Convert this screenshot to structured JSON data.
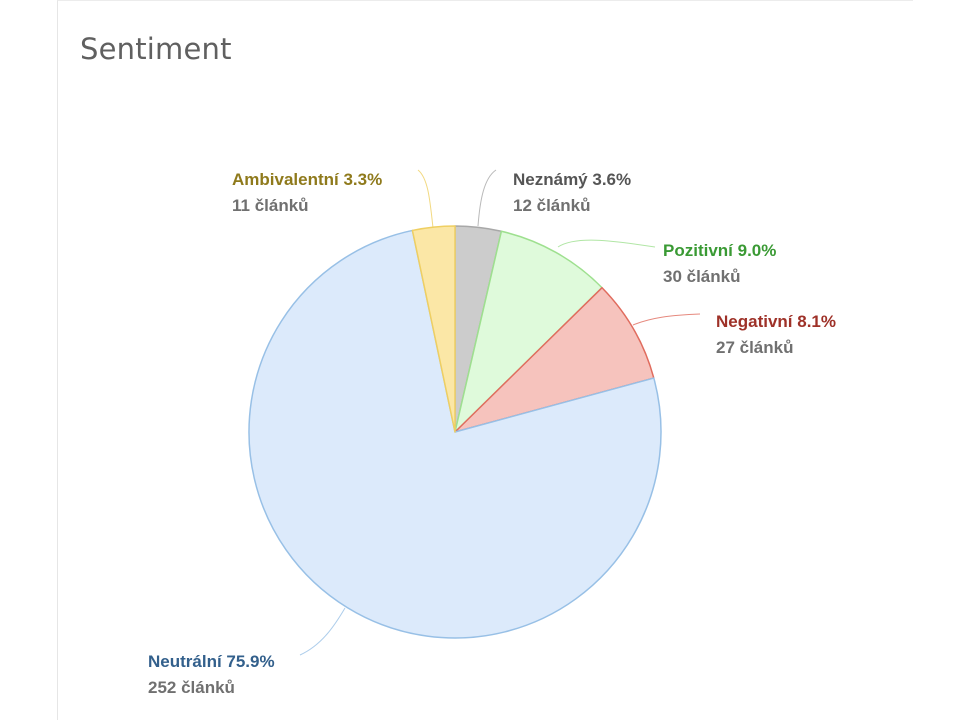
{
  "card": {
    "title": "Sentiment"
  },
  "chart_data": {
    "type": "pie",
    "start_angle_deg": 0,
    "direction": "clockwise",
    "slices": [
      {
        "name": "Neznámý",
        "percent_label": "3.6%",
        "count_label": "12 článků",
        "value": 12,
        "fill": "#cccccc",
        "stroke": "#a8a8a8",
        "label_color": "#555555"
      },
      {
        "name": "Pozitivní",
        "percent_label": "9.0%",
        "count_label": "30 článků",
        "value": 30,
        "fill": "#dffadb",
        "stroke": "#9ee08f",
        "label_color": "#3a9a34"
      },
      {
        "name": "Negativní",
        "percent_label": "8.1%",
        "count_label": "27 článků",
        "value": 27,
        "fill": "#f6c3bd",
        "stroke": "#e06c5e",
        "label_color": "#9e3128"
      },
      {
        "name": "Neutrální",
        "percent_label": "75.9%",
        "count_label": "252 článků",
        "value": 252,
        "fill": "#dceafb",
        "stroke": "#98c0e6",
        "label_color": "#33608c"
      },
      {
        "name": "Ambivalentní",
        "percent_label": "3.3%",
        "count_label": "11 článků",
        "value": 11,
        "fill": "#fbe7a6",
        "stroke": "#efcf62",
        "label_color": "#8f7a1c"
      }
    ]
  }
}
